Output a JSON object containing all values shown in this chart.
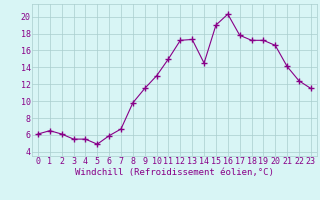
{
  "x": [
    0,
    1,
    2,
    3,
    4,
    5,
    6,
    7,
    8,
    9,
    10,
    11,
    12,
    13,
    14,
    15,
    16,
    17,
    18,
    19,
    20,
    21,
    22,
    23
  ],
  "y": [
    6.1,
    6.5,
    6.1,
    5.5,
    5.5,
    4.9,
    5.9,
    6.7,
    9.8,
    11.5,
    13.0,
    15.0,
    17.2,
    17.3,
    14.5,
    19.0,
    20.3,
    17.8,
    17.2,
    17.2,
    16.6,
    14.1,
    12.4,
    11.5
  ],
  "line_color": "#880088",
  "marker": "+",
  "marker_size": 4,
  "marker_linewidth": 1.0,
  "line_width": 0.8,
  "bg_color": "#d8f5f5",
  "grid_color": "#aacece",
  "xlabel": "Windchill (Refroidissement éolien,°C)",
  "xlabel_color": "#880088",
  "xlabel_fontsize": 6.5,
  "tick_color": "#880088",
  "tick_fontsize": 6,
  "ytick_vals": [
    4,
    6,
    8,
    10,
    12,
    14,
    16,
    18,
    20
  ],
  "ytick_labels": [
    "4",
    "6",
    "8",
    "10",
    "12",
    "14",
    "16",
    "18",
    "20"
  ],
  "ylim": [
    3.5,
    21.5
  ],
  "xlim": [
    -0.5,
    23.5
  ],
  "xtick_labels": [
    "0",
    "1",
    "2",
    "3",
    "4",
    "5",
    "6",
    "7",
    "8",
    "9",
    "10",
    "11",
    "12",
    "13",
    "14",
    "15",
    "16",
    "17",
    "18",
    "19",
    "20",
    "21",
    "22",
    "23"
  ]
}
